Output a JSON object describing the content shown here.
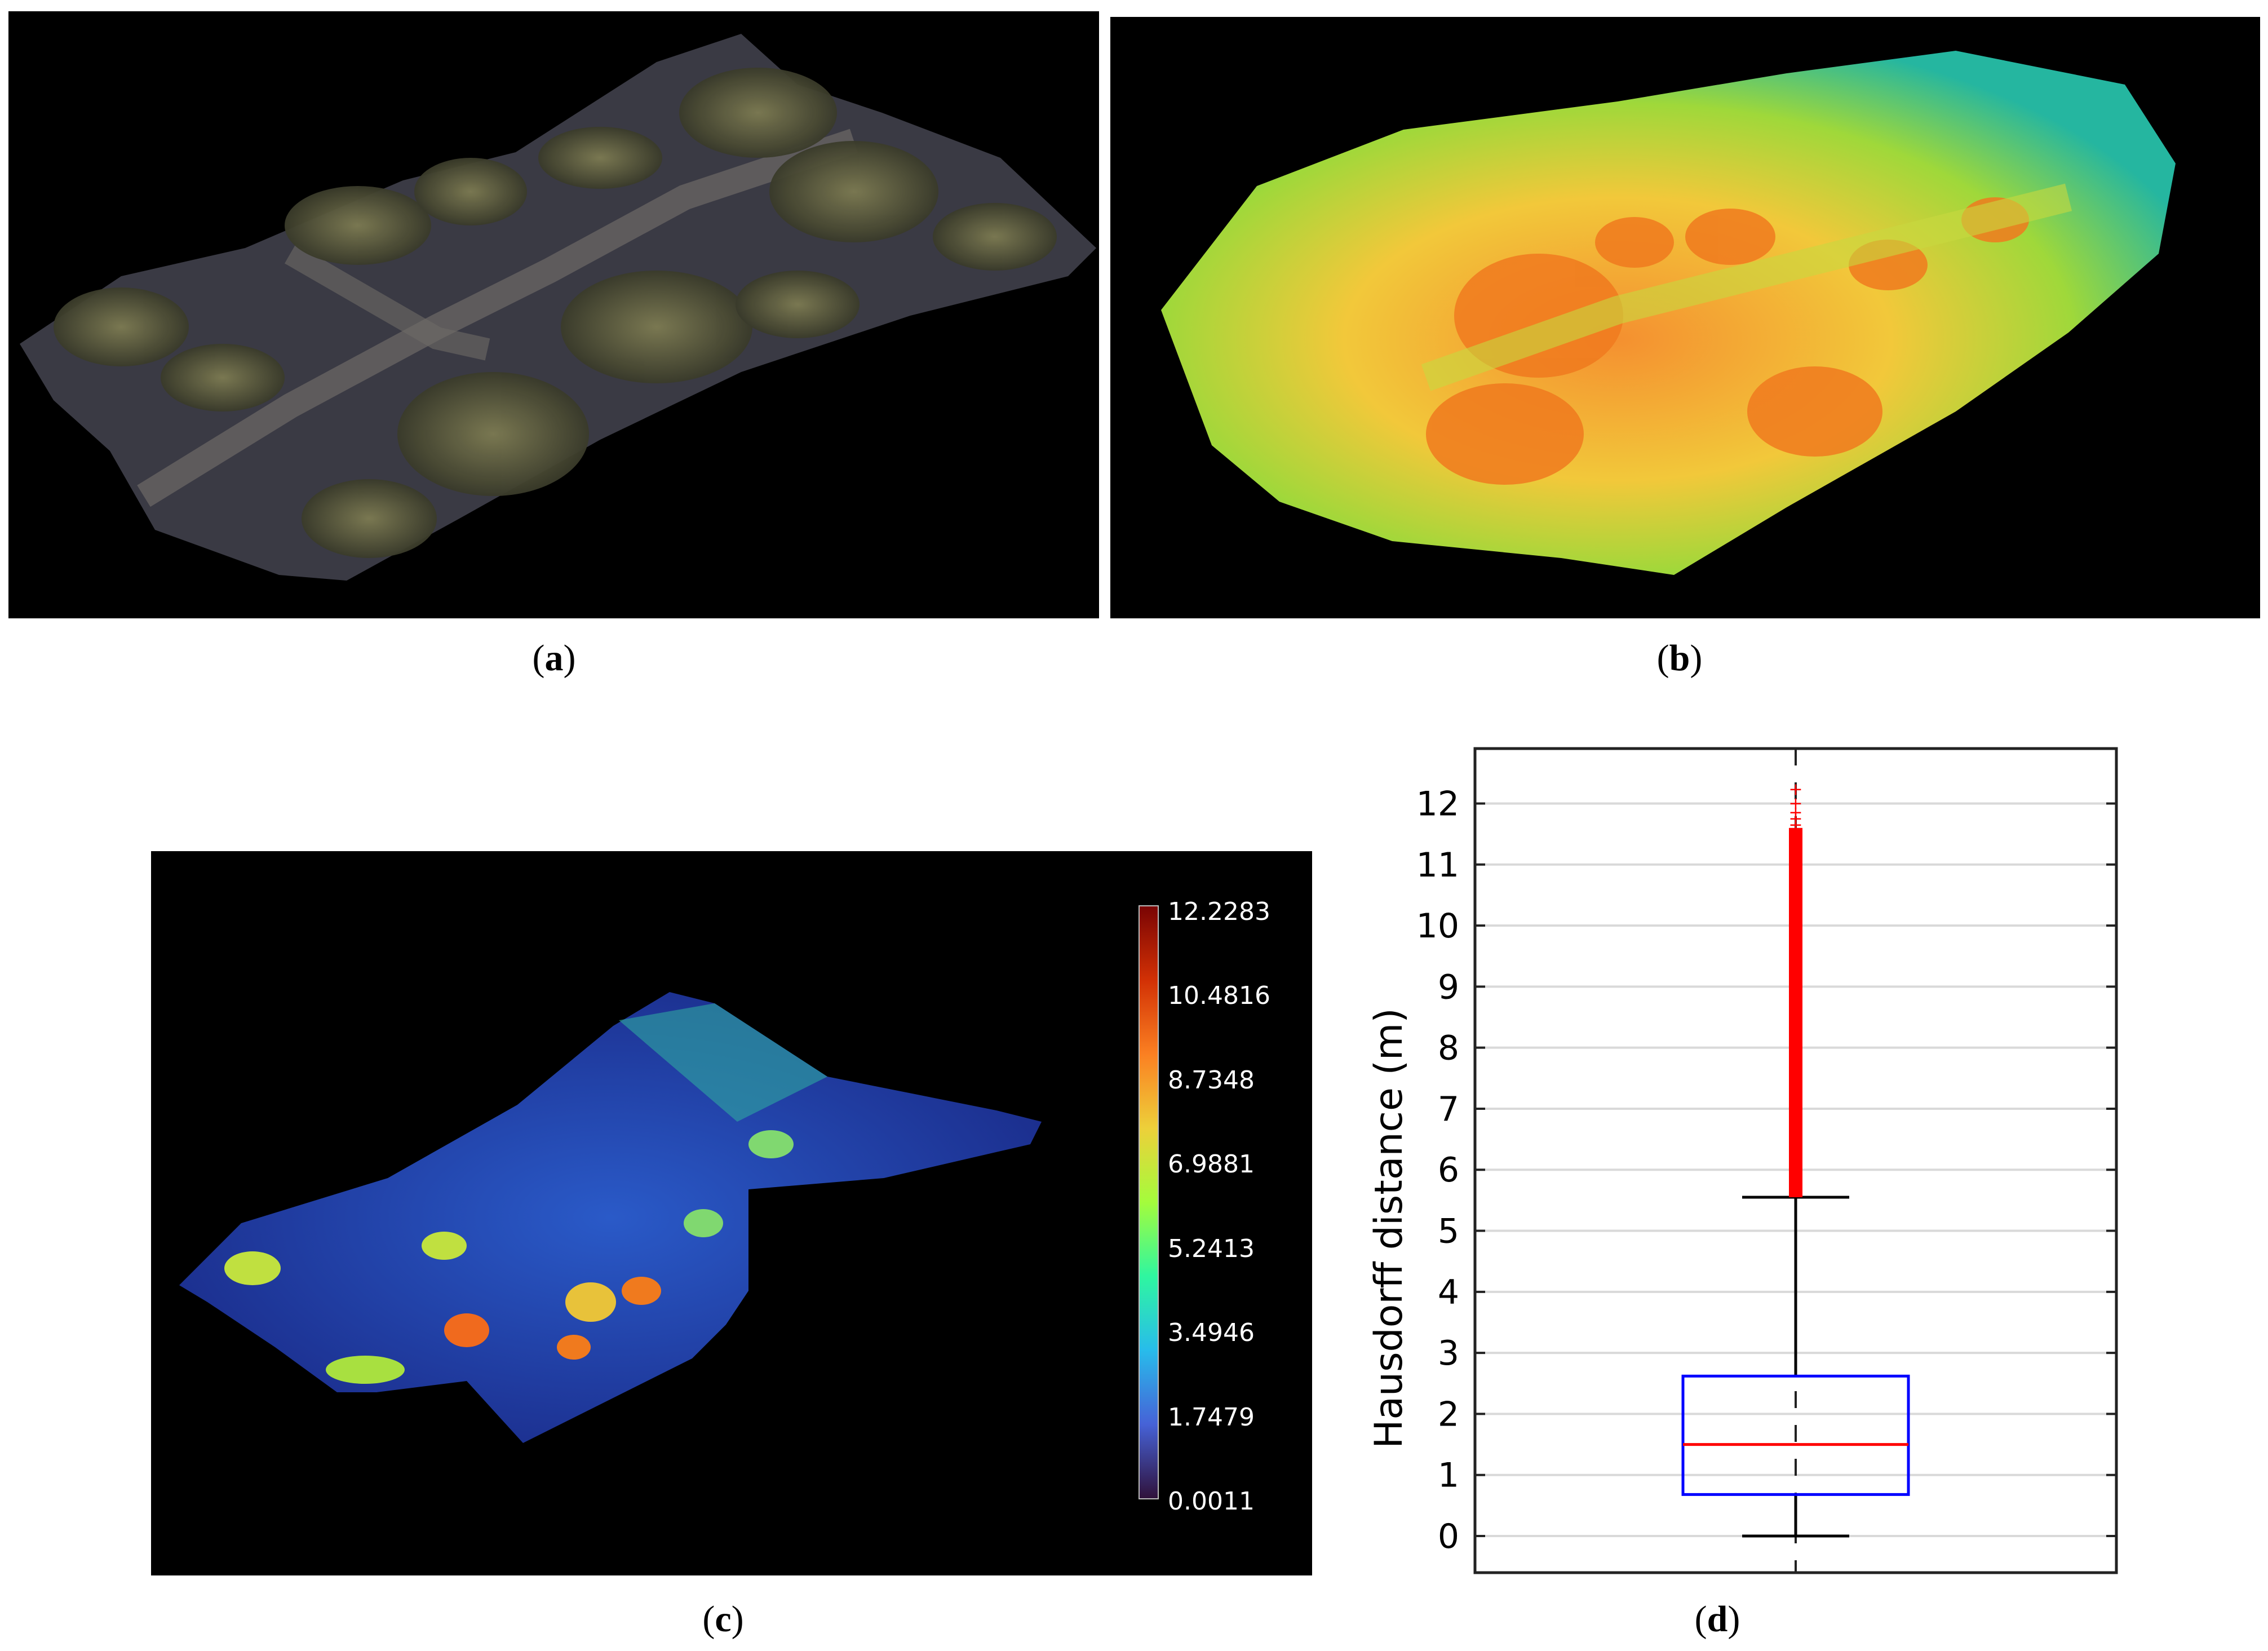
{
  "captions": {
    "a": "a",
    "b": "b",
    "c": "c",
    "d": "d"
  },
  "colorbar": {
    "ticks": [
      "12.2283",
      "10.4816",
      "8.7348",
      "6.9881",
      "5.2413",
      "3.4946",
      "1.7479",
      "0.0011"
    ],
    "colors": [
      "#7a0403",
      "#d23105",
      "#fb8022",
      "#edd03a",
      "#a4fc3c",
      "#2ff6a0",
      "#28bceb",
      "#4662d7",
      "#30123b"
    ]
  },
  "chart_data": {
    "type": "box",
    "ylabel": "Hausdorff distance (m)",
    "ylim": [
      -0.6,
      12.9
    ],
    "yticks": [
      0,
      1,
      2,
      3,
      4,
      5,
      6,
      7,
      8,
      9,
      10,
      11,
      12
    ],
    "grid": true,
    "box": {
      "whisker_low": 0,
      "q1": 0.68,
      "median": 1.5,
      "q3": 2.62,
      "whisker_high": 5.55,
      "outlier_range": [
        5.55,
        11.6
      ],
      "outlier_max": 12.23,
      "box_color": "#0000ff",
      "median_color": "#ff0000",
      "outlier_color": "#ff0000"
    }
  }
}
